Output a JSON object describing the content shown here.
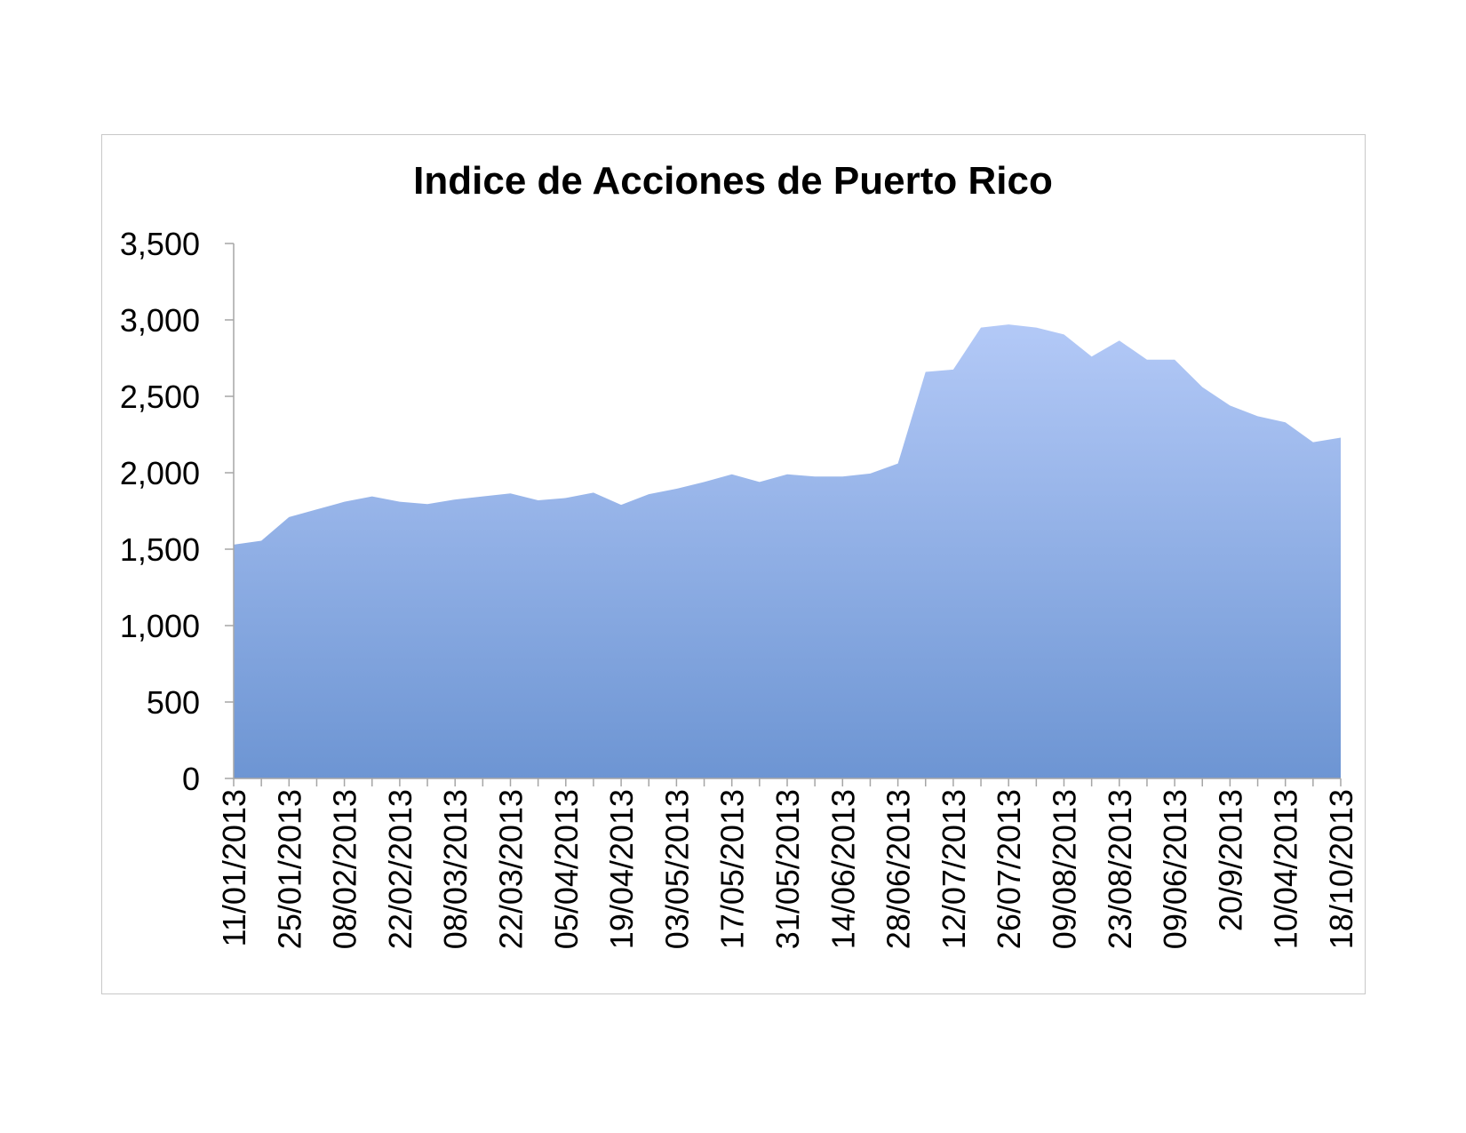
{
  "chart_data": {
    "type": "area",
    "title": "Indice de Acciones de Puerto Rico",
    "xlabel": "",
    "ylabel": "",
    "ylim": [
      0,
      3500
    ],
    "y_ticks": [
      "0",
      "500",
      "1,000",
      "1,500",
      "2,000",
      "2,500",
      "3,000",
      "3,500"
    ],
    "y_tick_values": [
      0,
      500,
      1000,
      1500,
      2000,
      2500,
      3000,
      3500
    ],
    "x_tick_labels": [
      "11/01/2013",
      "25/01/2013",
      "08/02/2013",
      "22/02/2013",
      "08/03/2013",
      "22/03/2013",
      "05/04/2013",
      "19/04/2013",
      "03/05/2013",
      "17/05/2013",
      "31/05/2013",
      "14/06/2013",
      "28/06/2013",
      "12/07/2013",
      "26/07/2013",
      "09/08/2013",
      "23/08/2013",
      "09/06/2013",
      "20/9/2013",
      "10/04/2013",
      "18/10/2013"
    ],
    "grid": false,
    "legend": "none",
    "fill_color_top": "#b3c9f7",
    "fill_color_bottom": "#6d95d3",
    "series": [
      {
        "values": [
          1530,
          1555,
          1710,
          1760,
          1810,
          1845,
          1810,
          1795,
          1825,
          1845,
          1865,
          1820,
          1835,
          1870,
          1790,
          1860,
          1895,
          1940,
          1990,
          1940,
          1990,
          1975,
          1975,
          1995,
          2060,
          2660,
          2675,
          2950,
          2970,
          2950,
          2905,
          2760,
          2865,
          2740,
          2740,
          2560,
          2440,
          2370,
          2330,
          2200,
          2230
        ]
      }
    ]
  }
}
